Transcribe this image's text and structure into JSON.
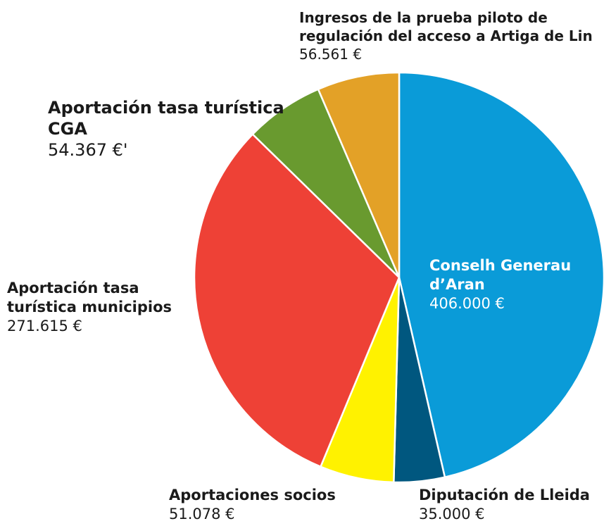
{
  "chart_data": {
    "type": "pie",
    "categories": [
      "Conselh Generau d’Aran",
      "Diputación de Lleida",
      "Aportaciones socios",
      "Aportación tasa turística municipios",
      "Aportación tasa turística CGA",
      "Ingresos de la prueba piloto de regulación del acceso a Artiga de Lin"
    ],
    "values": [
      406000,
      35000,
      51078,
      271615,
      54367,
      56561
    ],
    "value_labels": [
      "406.000 €",
      "35.000 €",
      "51.078 €",
      "271.615 €",
      "54.367 €'",
      "56.561 €"
    ],
    "colors": [
      "#0a9bd8",
      "#00577f",
      "#fff200",
      "#ee4136",
      "#699a2f",
      "#e3a127"
    ]
  }
}
